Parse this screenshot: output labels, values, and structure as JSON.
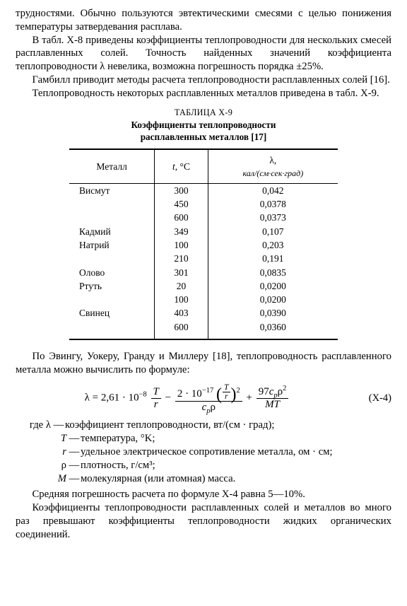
{
  "p1": "трудностями. Обычно пользуются эвтектическими смесями с целью понижения температуры затвердевания расплава.",
  "p2": "В табл. X-8 приведены коэффициенты теплопроводности для не­скольких смесей расплавленных солей. Точность найденных зна­чений коэффициента теплопроводности λ невелика, возможна по­грешность порядка ±25%.",
  "p3": "Гамбилл приводит методы расчета теплопроводности расплав­ленных солей [16].",
  "p4": "Теплопроводность некоторых расплавленных металлов приве­дена в табл. X-9.",
  "table": {
    "caption": "ТАБЛИЦА X-9",
    "title1": "Коэффициенты теплопроводности",
    "title2": "расплавленных металлов [17]",
    "head": {
      "c1": "Металл",
      "c2_t": "t",
      "c2_unit": ", °C",
      "c3_l": "λ,",
      "c3_u": "кал/(см·сек·град)"
    },
    "rows": [
      {
        "m": "Висмут",
        "t": "300",
        "v": "0,042"
      },
      {
        "m": "",
        "t": "450",
        "v": "0,0378"
      },
      {
        "m": "",
        "t": "600",
        "v": "0,0373"
      },
      {
        "m": "Кадмий",
        "t": "349",
        "v": "0,107",
        "gap": true
      },
      {
        "m": "Натрий",
        "t": "100",
        "v": "0,203"
      },
      {
        "m": "",
        "t": "210",
        "v": "0,191"
      },
      {
        "m": "Олово",
        "t": "301",
        "v": "0,0835",
        "gap": true
      },
      {
        "m": "Ртуть",
        "t": "20",
        "v": "0,0200"
      },
      {
        "m": "",
        "t": "100",
        "v": "0,0200"
      },
      {
        "m": "Свинец",
        "t": "403",
        "v": "0,0390",
        "gap": true
      },
      {
        "m": "",
        "t": "600",
        "v": "0,0360"
      }
    ]
  },
  "p5": "По Эвингу, Уокеру, Гранду и Миллеру [18], теплопроводность расплавленного металла можно вычислить по формуле:",
  "formula": {
    "lhs": "λ = 2,61 · 10",
    "exp_m8": "−8",
    "t1_num": "T",
    "t1_den": "r",
    "minus": " − ",
    "t2_coef": "2 · 10",
    "exp_m17": "−17",
    "inner_num": "T",
    "inner_den": "r",
    "sq": "2",
    "t2_den1": "c",
    "t2_den1s": "p",
    "t2_den2": "ρ",
    "plus": " + ",
    "t3_num_a": "97",
    "t3_num_c": "c",
    "t3_num_cs": "p",
    "t3_num_r": "ρ",
    "t3_num_sq": "2",
    "t3_den": "MT",
    "eqnum": "(X-4)"
  },
  "defs": {
    "lead": "где ",
    "d1s": "λ",
    "d1": "коэффициент теплопроводности, вт/(см · град);",
    "d2s": "T",
    "d2": "температура, °K;",
    "d3s": "r",
    "d3": "удельное электрическое сопротивление металла, ом · см;",
    "d4s": "ρ",
    "d4": "плотность, г/см³;",
    "d5s": "M",
    "d5": "молекулярная (или атомная) масса.",
    "dash": "—"
  },
  "p6": "Средняя погрешность расчета по формуле X-4 равна 5—10%.",
  "p7": "Коэффициенты теплопроводности расплавленных солей и ме­таллов во много раз превышают коэффициенты теплопроводности жидких органических соединений."
}
